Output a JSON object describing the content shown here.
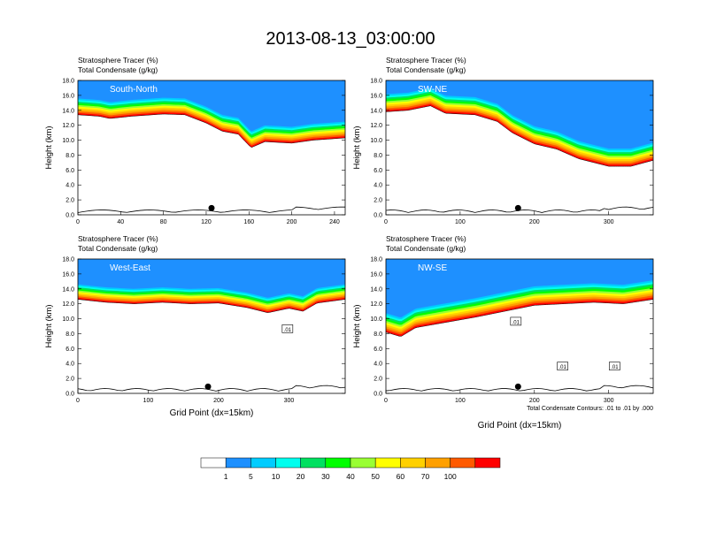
{
  "page_title": "2013-08-13_03:00:00",
  "chart_data": [
    {
      "type": "heatmap",
      "panel_label": "South-North",
      "titles": [
        "Stratosphere Tracer   (%)",
        "Total Condensate   (g/kg)"
      ],
      "ylabel": "Height (km)",
      "xlabel": "",
      "xlim": [
        0,
        250
      ],
      "xticks": [
        "0",
        "40",
        "80",
        "120",
        "160",
        "200",
        "240"
      ],
      "ylim": [
        0,
        18
      ],
      "yticks": [
        "0.0",
        "2.0",
        "4.0",
        "6.0",
        "8.0",
        "10.0",
        "12.0",
        "14.0",
        "16.0",
        "18.0"
      ],
      "tracer_top_km": 18,
      "tracer_base_km": [
        [
          0,
          13.4
        ],
        [
          20,
          13.2
        ],
        [
          30,
          12.9
        ],
        [
          50,
          13.2
        ],
        [
          80,
          13.5
        ],
        [
          100,
          13.4
        ],
        [
          120,
          12.3
        ],
        [
          135,
          11.2
        ],
        [
          150,
          10.8
        ],
        [
          162,
          9.0
        ],
        [
          175,
          9.8
        ],
        [
          200,
          9.6
        ],
        [
          220,
          10.0
        ],
        [
          250,
          10.3
        ]
      ],
      "band_width_km": 2.4,
      "marker_point": [
        125,
        0.9
      ],
      "contour_labels": []
    },
    {
      "type": "heatmap",
      "panel_label": "SW-NE",
      "titles": [
        "Stratosphere Tracer   (%)",
        "Total Condensate   (g/kg)"
      ],
      "ylabel": "Height (km)",
      "xlabel": "",
      "xlim": [
        0,
        360
      ],
      "xticks": [
        "0",
        "100",
        "200",
        "300"
      ],
      "ylim": [
        0,
        18
      ],
      "yticks": [
        "0.0",
        "2.0",
        "4.0",
        "6.0",
        "8.0",
        "10.0",
        "12.0",
        "14.0",
        "16.0",
        "18.0"
      ],
      "tracer_top_km": 18,
      "tracer_base_km": [
        [
          0,
          13.8
        ],
        [
          30,
          14.0
        ],
        [
          60,
          14.6
        ],
        [
          80,
          13.6
        ],
        [
          120,
          13.4
        ],
        [
          150,
          12.5
        ],
        [
          170,
          11.0
        ],
        [
          200,
          9.5
        ],
        [
          230,
          8.8
        ],
        [
          260,
          7.5
        ],
        [
          280,
          7.0
        ],
        [
          300,
          6.5
        ],
        [
          330,
          6.5
        ],
        [
          360,
          7.3
        ]
      ],
      "band_width_km": 2.6,
      "marker_point": [
        178,
        0.9
      ],
      "contour_labels": []
    },
    {
      "type": "heatmap",
      "panel_label": "West-East",
      "titles": [
        "Stratosphere Tracer   (%)",
        "Total Condensate   (g/kg)"
      ],
      "ylabel": "Height (km)",
      "xlabel": "Grid Point (dx=15km)",
      "xlim": [
        0,
        380
      ],
      "xticks": [
        "0",
        "100",
        "200",
        "300"
      ],
      "ylim": [
        0,
        18
      ],
      "yticks": [
        "0.0",
        "2.0",
        "4.0",
        "6.0",
        "8.0",
        "10.0",
        "12.0",
        "14.0",
        "16.0",
        "18.0"
      ],
      "tracer_top_km": 18,
      "tracer_base_km": [
        [
          0,
          12.6
        ],
        [
          40,
          12.2
        ],
        [
          80,
          12.0
        ],
        [
          120,
          12.2
        ],
        [
          160,
          12.0
        ],
        [
          200,
          12.1
        ],
        [
          240,
          11.5
        ],
        [
          270,
          10.8
        ],
        [
          300,
          11.4
        ],
        [
          320,
          11.0
        ],
        [
          340,
          12.1
        ],
        [
          380,
          12.6
        ]
      ],
      "band_width_km": 2.2,
      "marker_point": [
        185,
        0.9
      ],
      "contour_labels": [
        {
          "x": 298,
          "y": 8.6,
          "text": ".01"
        }
      ]
    },
    {
      "type": "heatmap",
      "panel_label": "NW-SE",
      "titles": [
        "Stratosphere Tracer   (%)",
        "Total Condensate   (g/kg)"
      ],
      "ylabel": "Height (km)",
      "xlabel": "Grid Point (dx=15km)",
      "xlim": [
        0,
        360
      ],
      "xticks": [
        "0",
        "100",
        "200",
        "300"
      ],
      "ylim": [
        0,
        18
      ],
      "yticks": [
        "0.0",
        "2.0",
        "4.0",
        "6.0",
        "8.0",
        "10.0",
        "12.0",
        "14.0",
        "16.0",
        "18.0"
      ],
      "tracer_top_km": 18,
      "tracer_base_km": [
        [
          0,
          8.2
        ],
        [
          20,
          7.6
        ],
        [
          40,
          8.8
        ],
        [
          80,
          9.5
        ],
        [
          120,
          10.2
        ],
        [
          160,
          11.0
        ],
        [
          200,
          11.8
        ],
        [
          240,
          12.0
        ],
        [
          280,
          12.2
        ],
        [
          320,
          12.0
        ],
        [
          360,
          12.6
        ]
      ],
      "band_width_km": 2.8,
      "marker_point": [
        178,
        0.9
      ],
      "contour_labels": [
        {
          "x": 175,
          "y": 9.6,
          "text": ".01"
        },
        {
          "x": 238,
          "y": 3.6,
          "text": ".01"
        },
        {
          "x": 308,
          "y": 3.6,
          "text": ".01"
        }
      ]
    }
  ],
  "contour_note": "Total Condensate Contours: .01 to .01 by .000",
  "colorbar": {
    "labels": [
      "1",
      "5",
      "10",
      "20",
      "30",
      "40",
      "50",
      "60",
      "70",
      "100"
    ],
    "colors": [
      "#ffffff",
      "#1e90ff",
      "#00ccff",
      "#00ffee",
      "#00e060",
      "#00ff00",
      "#99ff33",
      "#ffff00",
      "#ffd000",
      "#ffa000",
      "#ff5a00",
      "#ff0000"
    ]
  }
}
